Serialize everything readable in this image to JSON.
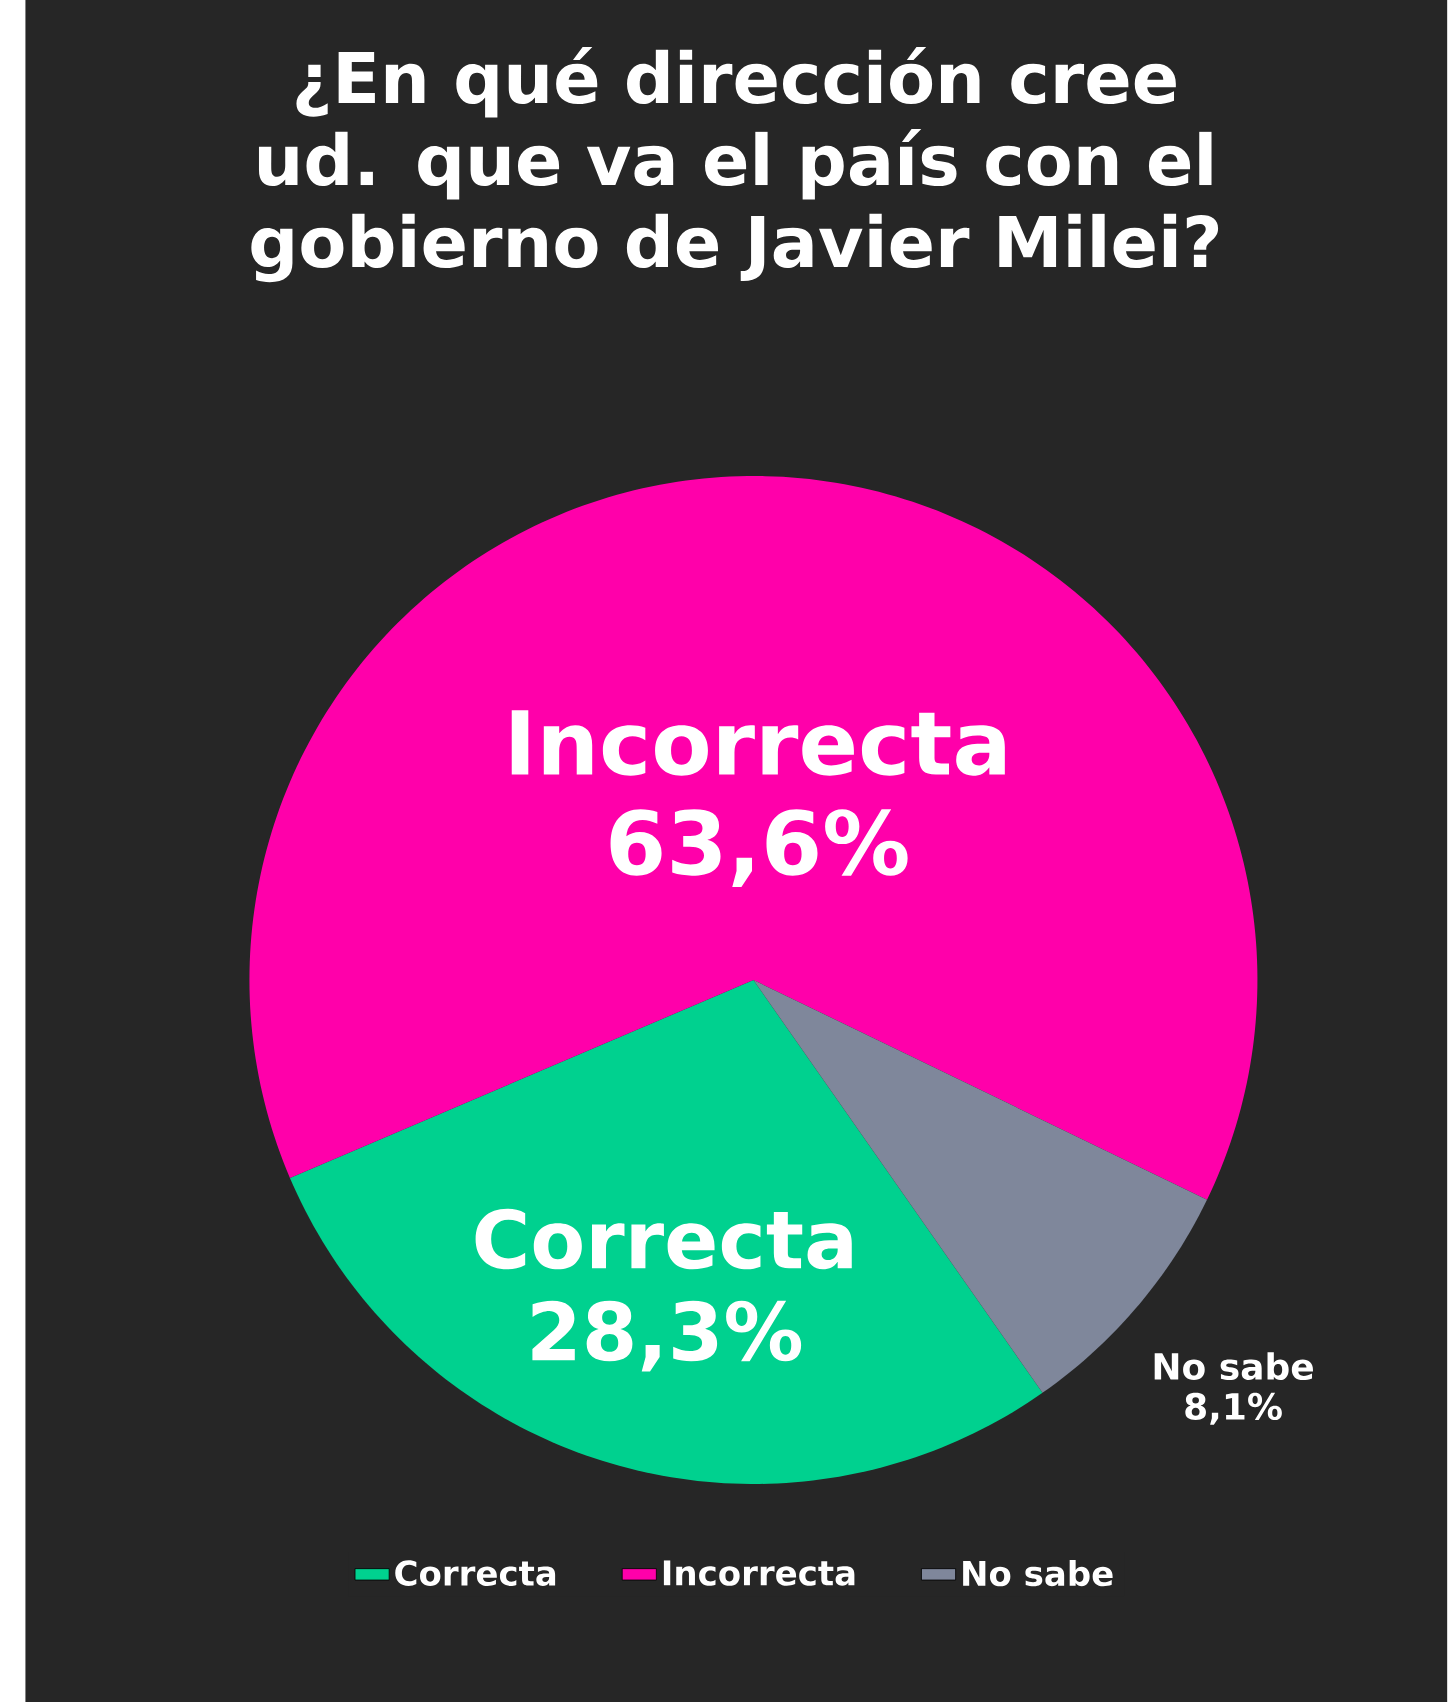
{
  "chart_data": {
    "type": "pie",
    "title": "¿En qué dirección cree ud. que va el país con el gobierno de Javier Milei?",
    "categories": [
      "Correcta",
      "Incorrecta",
      "No sabe"
    ],
    "values": [
      28.3,
      63.6,
      8.1
    ],
    "value_labels": [
      "28,3%",
      "63,6%",
      "8,1%"
    ],
    "colors": [
      "#00d18f",
      "#ff00aa",
      "#7f879b"
    ],
    "legend": "bottom"
  }
}
